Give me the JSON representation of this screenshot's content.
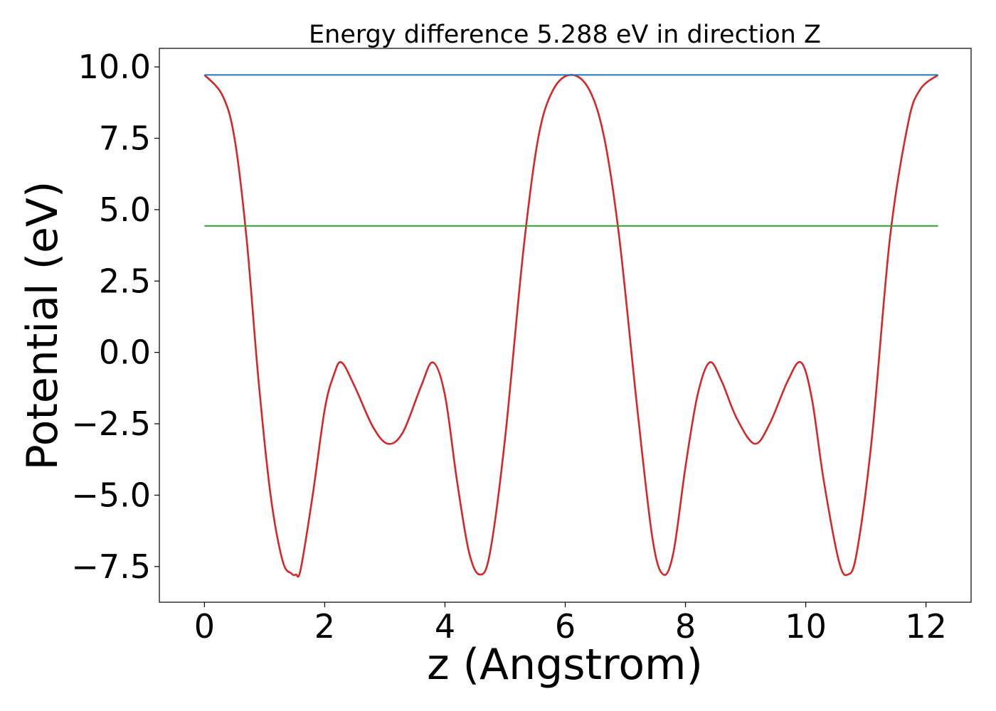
{
  "chart_data": {
    "type": "line",
    "title": "Energy difference 5.288 eV in direction Z",
    "xlabel": "z (Angstrom)",
    "ylabel": "Potential (eV)",
    "xlim": [
      -0.75,
      12.75
    ],
    "ylim": [
      -8.75,
      10.65
    ],
    "x_ticks": [
      0,
      2,
      4,
      6,
      8,
      10,
      12
    ],
    "x_tick_labels": [
      "0",
      "2",
      "4",
      "6",
      "8",
      "10",
      "12"
    ],
    "y_ticks": [
      10.0,
      7.5,
      5.0,
      2.5,
      0.0,
      -2.5,
      -5.0,
      -7.5
    ],
    "y_tick_labels": [
      "10.0",
      "7.5",
      "5.0",
      "2.5",
      "0.0",
      "−2.5",
      "−5.0",
      "−7.5"
    ],
    "grid": false,
    "series": [
      {
        "color": "#d62728",
        "x": [
          0.0,
          0.3,
          0.5,
          0.7,
          0.9,
          1.1,
          1.3,
          1.45,
          1.52,
          1.6,
          1.8,
          2.0,
          2.15,
          2.28,
          2.5,
          2.8,
          3.05,
          3.3,
          3.6,
          3.8,
          4.0,
          4.2,
          4.4,
          4.58,
          4.75,
          5.0,
          5.3,
          5.55,
          5.8,
          6.1,
          6.4,
          6.65,
          6.9,
          7.2,
          7.45,
          7.63,
          7.8,
          8.0,
          8.2,
          8.4,
          8.6,
          8.85,
          9.15,
          9.4,
          9.7,
          9.92,
          10.1,
          10.3,
          10.55,
          10.7,
          10.85,
          11.1,
          11.4,
          11.7,
          11.9,
          12.2
        ],
        "y": [
          9.72,
          9.0,
          7.5,
          4.0,
          -1.0,
          -5.0,
          -7.3,
          -7.75,
          -7.78,
          -7.6,
          -5.0,
          -2.0,
          -0.8,
          -0.35,
          -1.2,
          -2.6,
          -3.2,
          -2.8,
          -1.2,
          -0.35,
          -1.5,
          -4.5,
          -7.0,
          -7.78,
          -7.0,
          -3.0,
          3.5,
          7.5,
          9.2,
          9.72,
          9.2,
          7.5,
          4.0,
          -2.0,
          -6.5,
          -7.78,
          -7.0,
          -4.0,
          -1.5,
          -0.35,
          -1.0,
          -2.3,
          -3.2,
          -2.5,
          -1.0,
          -0.35,
          -1.6,
          -4.5,
          -7.3,
          -7.78,
          -7.0,
          -3.0,
          4.0,
          8.0,
          9.2,
          9.72
        ]
      },
      {
        "color": "#1f77b4",
        "x": [
          0.0,
          12.2
        ],
        "y": [
          9.72,
          9.72
        ]
      },
      {
        "color": "#2ca02c",
        "x": [
          0.0,
          12.2
        ],
        "y": [
          4.43,
          4.43
        ]
      }
    ]
  }
}
